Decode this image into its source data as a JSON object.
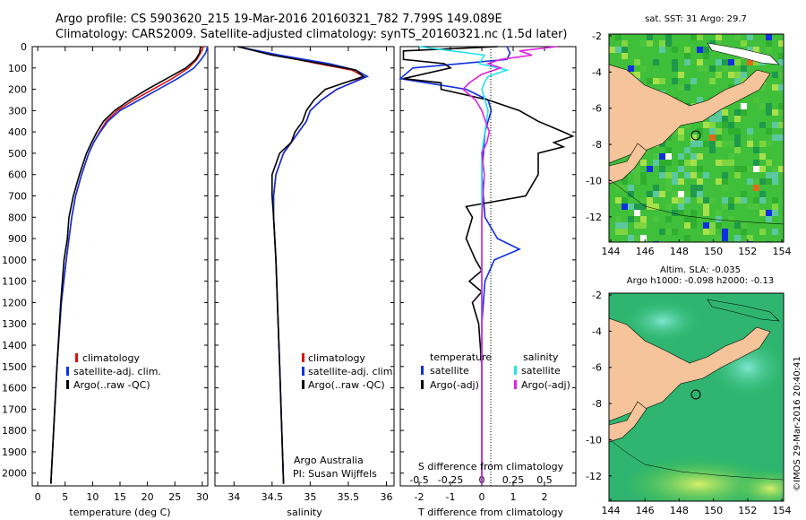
{
  "header": {
    "line1": "Argo profile: CS 5903620_215 19-Mar-2016 20160321_782 7.799S 149.089E",
    "line2": "Climatology: CARS2009. Satellite-adjusted climatology: synTS_20160321.nc (1.5d later)"
  },
  "colors": {
    "climatology": "#e01010",
    "satellite": "#1030e0",
    "argo": "#000000",
    "sal_sat": "#20e0f0",
    "sal_argo": "#e020e0",
    "land": "#f5c49a",
    "ocean_sst": "#40c040",
    "ocean_sla": "#2ab86a"
  },
  "depth_axis": {
    "ticks": [
      "0",
      "100",
      "200",
      "300",
      "400",
      "500",
      "600",
      "700",
      "800",
      "900",
      "1000",
      "1100",
      "1200",
      "1300",
      "1400",
      "1500",
      "1600",
      "1700",
      "1800",
      "1900",
      "2000"
    ]
  },
  "legend": {
    "climatology": "climatology",
    "satellite": "satellite-adj. clim.",
    "argo": "Argo(..raw -QC)"
  },
  "legend2": {
    "climatology": "climatology",
    "satellite": "satellite-adj. clim.",
    "argo": "Argo(..raw -QC)"
  },
  "legend3": {
    "temp_title": "temperature",
    "sal_title": "salinity",
    "temp_sat": "satellite",
    "temp_argo": "Argo(-adj)",
    "sal_sat": "satellite",
    "sal_argo": "Argo(-adj)"
  },
  "credits": {
    "org": "Argo Australia",
    "pi": "PI: Susan Wijffels"
  },
  "sst_map": {
    "title": "sat. SST: 31  Argo: 29.7",
    "yticks": [
      "-2",
      "-4",
      "-6",
      "-8",
      "-10",
      "-12"
    ],
    "xticks": [
      "144",
      "146",
      "148",
      "150",
      "152",
      "154"
    ]
  },
  "sla_map": {
    "title1": "Altim. SLA: -0.035",
    "title2": "Argo h1000: -0.098 h2000: -0.13",
    "yticks": [
      "-2",
      "-4",
      "-6",
      "-8",
      "-10",
      "-12"
    ],
    "xticks": [
      "144",
      "146",
      "148",
      "150",
      "152",
      "154"
    ]
  },
  "stamp": "©IMOS 29-Mar-2016 20:40:41",
  "chart_data": [
    {
      "type": "line",
      "xlabel": "temperature (deg C)",
      "ylabel": "depth",
      "xlim": [
        -1,
        31
      ],
      "ylim": [
        2060,
        0
      ],
      "xticks": [
        "0",
        "5",
        "10",
        "15",
        "20",
        "25",
        "30"
      ],
      "series": [
        {
          "name": "climatology",
          "depth": [
            0,
            30,
            60,
            100,
            150,
            200,
            250,
            300,
            350,
            400,
            450,
            500,
            600,
            700,
            800,
            900,
            1000,
            1200,
            1500,
            2000,
            2050
          ],
          "values": [
            30.2,
            29.7,
            29.0,
            27.5,
            24.5,
            21.0,
            17.5,
            14.5,
            12.5,
            11.3,
            10.2,
            9.3,
            8.0,
            6.9,
            6.2,
            5.7,
            5.2,
            4.3,
            3.5,
            2.5,
            2.4
          ]
        },
        {
          "name": "satellite",
          "depth": [
            0,
            30,
            60,
            100,
            150,
            200,
            250,
            300,
            350,
            400,
            450,
            500,
            600,
            700,
            800,
            900,
            1000,
            1200,
            1500,
            2000,
            2050
          ],
          "values": [
            31.0,
            30.6,
            29.8,
            28.5,
            25.5,
            22.0,
            18.5,
            15.0,
            12.8,
            11.4,
            10.2,
            9.3,
            8.0,
            6.9,
            6.2,
            5.7,
            5.2,
            4.3,
            3.5,
            2.5,
            2.4
          ]
        },
        {
          "name": "Argo",
          "depth": [
            0,
            30,
            60,
            100,
            150,
            200,
            250,
            300,
            350,
            400,
            450,
            500,
            600,
            700,
            800,
            900,
            1000,
            1200,
            1500,
            2000,
            2050
          ],
          "values": [
            29.7,
            29.5,
            28.8,
            27.0,
            23.5,
            20.0,
            16.8,
            14.0,
            12.0,
            10.8,
            9.8,
            8.9,
            7.6,
            6.5,
            5.7,
            5.4,
            4.8,
            4.2,
            3.5,
            2.5,
            2.4
          ]
        }
      ]
    },
    {
      "type": "line",
      "xlabel": "salinity",
      "xlim": [
        33.75,
        36.1
      ],
      "ylim": [
        2060,
        0
      ],
      "xticks": [
        "34",
        "34.5",
        "35",
        "35.5",
        "36"
      ],
      "series": [
        {
          "name": "climatology",
          "depth": [
            0,
            40,
            80,
            110,
            140,
            170,
            200,
            250,
            300,
            350,
            400,
            450,
            500,
            600,
            700,
            800,
            1000,
            1500,
            2050
          ],
          "values": [
            34.05,
            34.55,
            35.1,
            35.55,
            35.7,
            35.55,
            35.35,
            35.15,
            35.0,
            34.95,
            34.85,
            34.75,
            34.65,
            34.55,
            34.52,
            34.52,
            34.55,
            34.6,
            34.65
          ]
        },
        {
          "name": "satellite",
          "depth": [
            0,
            40,
            80,
            110,
            140,
            170,
            200,
            250,
            300,
            350,
            400,
            450,
            500,
            600,
            700,
            800,
            1000,
            1500,
            2050
          ],
          "values": [
            34.05,
            34.6,
            35.25,
            35.6,
            35.75,
            35.55,
            35.35,
            35.15,
            35.0,
            34.95,
            34.85,
            34.75,
            34.65,
            34.55,
            34.52,
            34.52,
            34.55,
            34.6,
            34.65
          ]
        },
        {
          "name": "Argo",
          "depth": [
            0,
            40,
            80,
            110,
            140,
            170,
            200,
            250,
            300,
            350,
            400,
            450,
            500,
            600,
            700,
            800,
            1000,
            1500,
            2050
          ],
          "values": [
            34.05,
            34.5,
            35.15,
            35.6,
            35.7,
            35.45,
            35.2,
            35.05,
            34.95,
            34.9,
            34.8,
            34.75,
            34.6,
            34.5,
            34.5,
            34.52,
            34.55,
            34.6,
            34.65
          ]
        }
      ]
    },
    {
      "type": "line",
      "xlabel": "T difference from climatology",
      "xlabel_top": "S difference from climatology",
      "xlim": [
        -2.6,
        3.0
      ],
      "ylim": [
        2060,
        0
      ],
      "xticks": [
        "-2",
        "-1",
        "0",
        "1",
        "2"
      ],
      "xticks_top": [
        "-0.5",
        "-0.25",
        "0",
        "0.25",
        "0.5"
      ],
      "series": [
        {
          "name": "temperature satellite",
          "depth": [
            0,
            30,
            60,
            100,
            150,
            200,
            250,
            300,
            350,
            400,
            500,
            600,
            700,
            800,
            900,
            950,
            1000,
            1100,
            1300,
            1500,
            2050
          ],
          "values": [
            0.8,
            0.9,
            0.8,
            -2.2,
            -2.6,
            -0.5,
            0.2,
            0.3,
            0.2,
            0.1,
            0.05,
            0.0,
            0.05,
            0.1,
            0.5,
            1.2,
            0.4,
            0.1,
            0.0,
            0.0,
            0.0
          ]
        },
        {
          "name": "temperature Argo",
          "depth": [
            0,
            20,
            60,
            80,
            100,
            150,
            170,
            200,
            250,
            300,
            350,
            400,
            420,
            450,
            470,
            500,
            600,
            700,
            750,
            800,
            900,
            1000,
            1050,
            1100,
            1150,
            1200,
            1300,
            1500,
            2050
          ],
          "values": [
            0.5,
            -2.5,
            -2.5,
            -1.2,
            -1.0,
            -2.5,
            -1.3,
            -1.3,
            0.2,
            1.2,
            1.8,
            2.6,
            2.9,
            2.3,
            2.6,
            1.8,
            1.8,
            1.4,
            -0.5,
            -0.3,
            -0.5,
            -0.2,
            0.0,
            -0.4,
            0.0,
            -0.3,
            -0.1,
            0.0,
            0.0
          ]
        },
        {
          "name": "salinity satellite",
          "depth": [
            0,
            40,
            80,
            110,
            140,
            170,
            200,
            300,
            500,
            1000,
            2050
          ],
          "values": [
            -0.5,
            0.02,
            -0.02,
            0.2,
            0.05,
            0.02,
            0.0,
            0.05,
            0.0,
            0.0,
            0.0
          ]
        },
        {
          "name": "salinity Argo",
          "depth": [
            0,
            20,
            40,
            60,
            80,
            100,
            130,
            170,
            200,
            250,
            300,
            350,
            400,
            450,
            500,
            600,
            800,
            1000,
            1500,
            2050
          ],
          "values": [
            0.6,
            0.3,
            0.4,
            0.15,
            0.05,
            0.15,
            0.0,
            -0.1,
            -0.15,
            -0.05,
            0.0,
            0.03,
            0.06,
            0.04,
            0.0,
            0.02,
            0.0,
            0.0,
            0.0,
            0.0
          ]
        }
      ]
    }
  ]
}
